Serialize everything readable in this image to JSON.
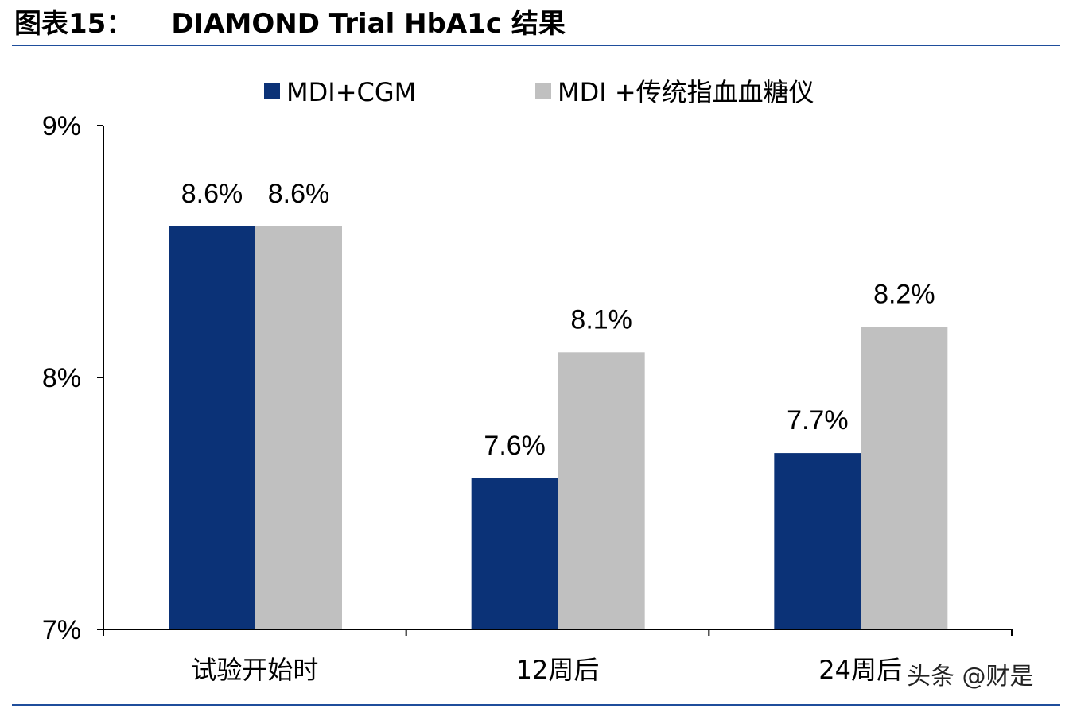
{
  "header": {
    "label": "图表15：",
    "title": "DIAMOND Trial HbA1c 结果"
  },
  "watermark": "头条 @财是",
  "colors": {
    "series_a": "#0b3277",
    "series_b": "#c0c0c0",
    "rule": "#1f4e9c"
  },
  "chart_data": {
    "type": "bar",
    "title": "DIAMOND Trial HbA1c 结果",
    "categories": [
      "试验开始时",
      "12周后",
      "24周后"
    ],
    "series": [
      {
        "name": "MDI+CGM",
        "values": [
          8.6,
          7.6,
          7.7
        ],
        "labels": [
          "8.6%",
          "7.6%",
          "7.7%"
        ]
      },
      {
        "name": "MDI +传统指血血糖仪",
        "values": [
          8.6,
          8.1,
          8.2
        ],
        "labels": [
          "8.6%",
          "8.1%",
          "8.2%"
        ]
      }
    ],
    "ylim": [
      7,
      9
    ],
    "yticks": [
      7,
      8,
      9
    ],
    "ytick_labels": [
      "7%",
      "8%",
      "9%"
    ],
    "xlabel": "",
    "ylabel": "",
    "legend": "top",
    "grid": false
  }
}
